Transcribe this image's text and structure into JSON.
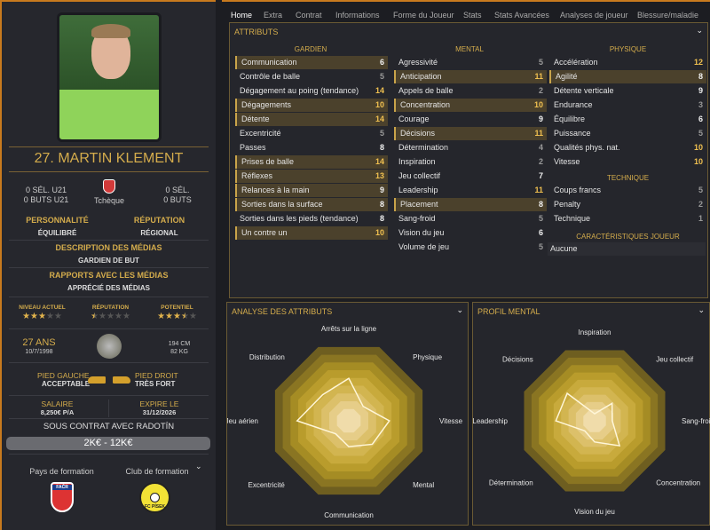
{
  "player": {
    "name": "27. MARTIN KLEMENT",
    "u21_caps": "0 SÉL. U21",
    "u21_goals": "0 BUTS U21",
    "nation": "Tchèque",
    "caps": "0 SÉL.",
    "goals": "0 BUTS",
    "personality_label": "PERSONNALITÉ",
    "personality": "ÉQUILIBRÉ",
    "reputation_label": "RÉPUTATION",
    "reputation": "RÉGIONAL",
    "media_desc_label": "DESCRIPTION DES MÉDIAS",
    "media_desc": "GARDIEN DE BUT",
    "media_rel_label": "RAPPORTS AVEC LES MÉDIAS",
    "media_rel": "APPRÉCIÉ DES MÉDIAS",
    "ratings": [
      {
        "label": "NIVEAU ACTUEL",
        "stars": 3
      },
      {
        "label": "RÉPUTATION",
        "stars": 0.5
      },
      {
        "label": "POTENTIEL",
        "stars": 3.5
      }
    ],
    "age": "27 ANS",
    "dob": "10/7/1998",
    "height": "194 CM",
    "weight": "82 KG",
    "left_foot_label": "PIED GAUCHE",
    "left_foot": "ACCEPTABLE",
    "right_foot_label": "PIED DROIT",
    "right_foot": "TRÈS FORT",
    "salary_label": "SALAIRE",
    "salary": "8,250€ P/A",
    "expires_label": "EXPIRE LE",
    "expires": "31/12/2026",
    "contract": "SOUS CONTRAT AVEC RADOTÍN",
    "value_range": "2K€ - 12K€",
    "training_country_label": "Pays de formation",
    "training_club_label": "Club de formation",
    "club_badge_text": "FC PÍSEK",
    "federation_text": "FAČR"
  },
  "tabs": [
    "Home",
    "Extra",
    "Contrat",
    "Informations",
    "Forme du Joueur",
    "Stats",
    "Stats Avancées",
    "Analyses de joueur",
    "Blessure/maladie"
  ],
  "attributes": {
    "title": "ATTRIBUTS",
    "gardien": {
      "title": "GARDIEN",
      "items": [
        {
          "name": "Communication",
          "value": 6,
          "hl": true
        },
        {
          "name": "Contrôle de balle",
          "value": 5
        },
        {
          "name": "Dégagement au poing (tendance)",
          "value": 14
        },
        {
          "name": "Dégagements",
          "value": 10,
          "hl": true
        },
        {
          "name": "Détente",
          "value": 14,
          "hl": true
        },
        {
          "name": "Excentricité",
          "value": 5
        },
        {
          "name": "Passes",
          "value": 8
        },
        {
          "name": "Prises de balle",
          "value": 14,
          "hl": true
        },
        {
          "name": "Réflexes",
          "value": 13,
          "hl": true
        },
        {
          "name": "Relances à la main",
          "value": 9,
          "hl": true
        },
        {
          "name": "Sorties dans la surface",
          "value": 8,
          "hl": true
        },
        {
          "name": "Sorties dans les pieds (tendance)",
          "value": 8
        },
        {
          "name": "Un contre un",
          "value": 10,
          "hl": true
        }
      ]
    },
    "mental": {
      "title": "MENTAL",
      "items": [
        {
          "name": "Agressivité",
          "value": 5
        },
        {
          "name": "Anticipation",
          "value": 11,
          "hl": true
        },
        {
          "name": "Appels de balle",
          "value": 2
        },
        {
          "name": "Concentration",
          "value": 10,
          "hl": true
        },
        {
          "name": "Courage",
          "value": 9
        },
        {
          "name": "Décisions",
          "value": 11,
          "hl": true
        },
        {
          "name": "Détermination",
          "value": 4
        },
        {
          "name": "Inspiration",
          "value": 2
        },
        {
          "name": "Jeu collectif",
          "value": 7
        },
        {
          "name": "Leadership",
          "value": 11
        },
        {
          "name": "Placement",
          "value": 8,
          "hl": true
        },
        {
          "name": "Sang-froid",
          "value": 5
        },
        {
          "name": "Vision du jeu",
          "value": 6
        },
        {
          "name": "Volume de jeu",
          "value": 5
        }
      ]
    },
    "physique": {
      "title": "PHYSIQUE",
      "items": [
        {
          "name": "Accélération",
          "value": 12
        },
        {
          "name": "Agilité",
          "value": 8,
          "hl": true
        },
        {
          "name": "Détente verticale",
          "value": 9
        },
        {
          "name": "Endurance",
          "value": 3
        },
        {
          "name": "Équilibre",
          "value": 6
        },
        {
          "name": "Puissance",
          "value": 5
        },
        {
          "name": "Qualités phys. nat.",
          "value": 10
        },
        {
          "name": "Vitesse",
          "value": 10
        }
      ]
    },
    "technique": {
      "title": "TECHNIQUE",
      "items": [
        {
          "name": "Coups francs",
          "value": 5
        },
        {
          "name": "Penalty",
          "value": 2
        },
        {
          "name": "Technique",
          "value": 1
        }
      ]
    },
    "traits": {
      "title": "CARACTÉRISTIQUES JOUEUR",
      "value": "Aucune"
    }
  },
  "chart_data": [
    {
      "type": "radar",
      "title": "ANALYSE DES ATTRIBUTS",
      "range": [
        0,
        20
      ],
      "axes": [
        "Arrêts sur la ligne",
        "Physique",
        "Vitesse",
        "Mental",
        "Communication",
        "Excentricité",
        "Jeu aérien",
        "Distribution"
      ],
      "values": [
        11.5,
        5.5,
        11,
        9,
        7,
        5,
        14,
        10
      ]
    },
    {
      "type": "radar",
      "title": "PROFIL MENTAL",
      "range": [
        0,
        20
      ],
      "axes": [
        "Inspiration",
        "Jeu collectif",
        "Sang-froid",
        "Concentration",
        "Vision du jeu",
        "Détermination",
        "Leadership",
        "Décisions"
      ],
      "values": [
        2,
        7,
        5,
        10,
        6,
        4,
        11,
        11
      ]
    }
  ],
  "colors": {
    "accent": "#d4ac4c",
    "border": "#c87a1e",
    "highlight": "#4b412c"
  }
}
